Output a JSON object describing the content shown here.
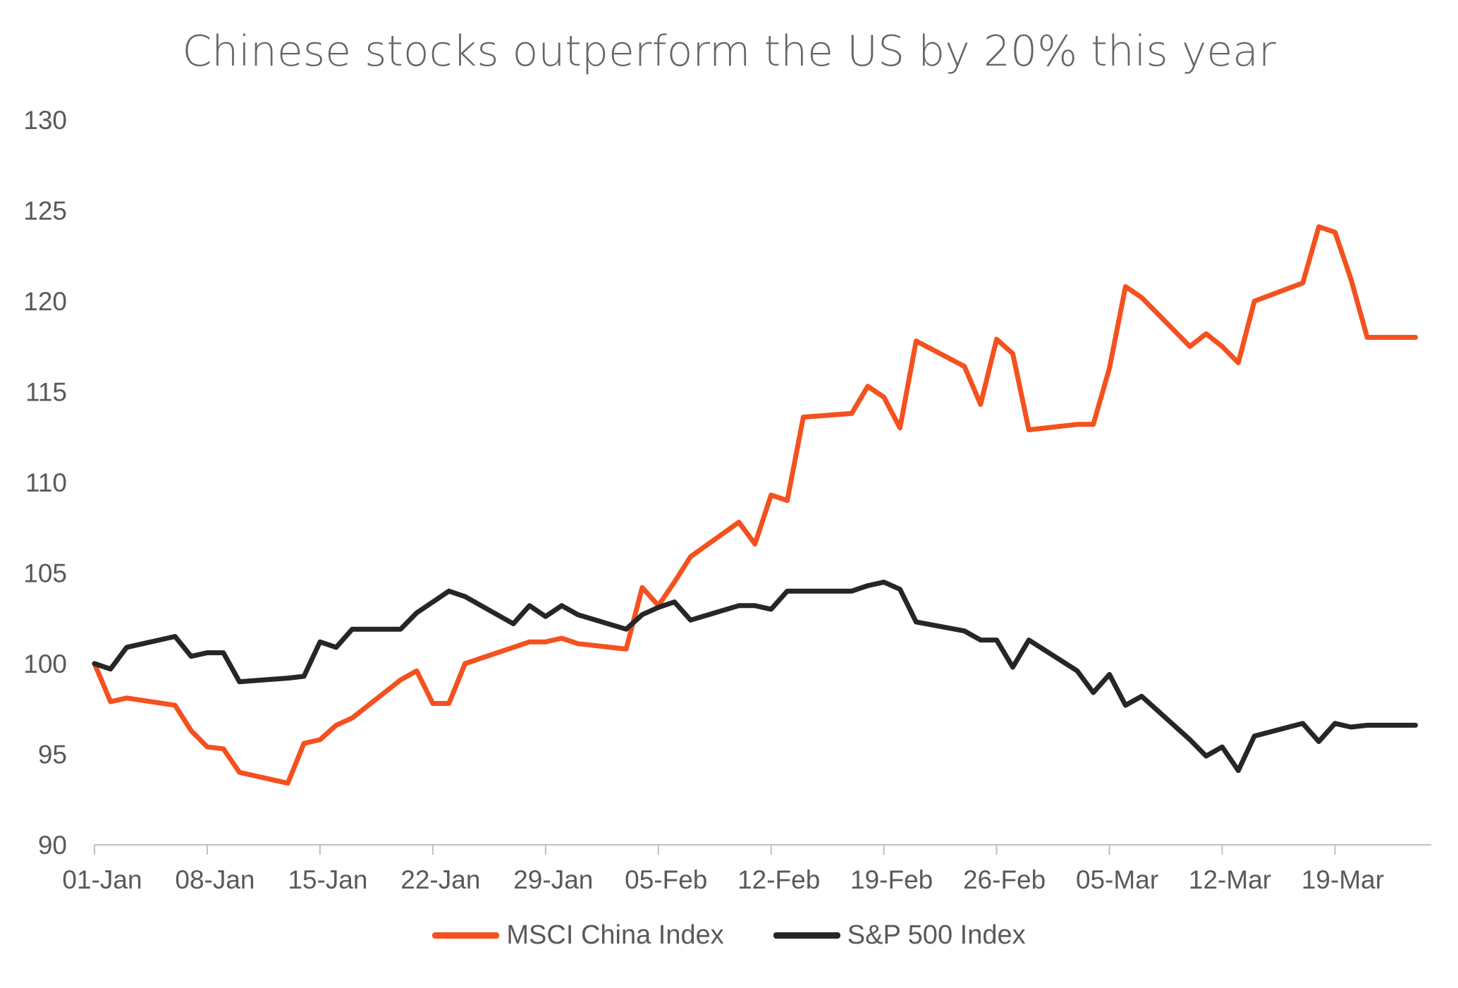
{
  "chart_data": {
    "type": "line",
    "title": "Chinese stocks outperform the US by 20% this year",
    "xlabel": "",
    "ylabel": "",
    "ylim": [
      90,
      130
    ],
    "yticks": [
      "90",
      "95",
      "100",
      "105",
      "110",
      "115",
      "120",
      "125",
      "130"
    ],
    "xticks": [
      {
        "label": "01-Jan",
        "day": 1
      },
      {
        "label": "08-Jan",
        "day": 8
      },
      {
        "label": "15-Jan",
        "day": 15
      },
      {
        "label": "22-Jan",
        "day": 22
      },
      {
        "label": "29-Jan",
        "day": 29
      },
      {
        "label": "05-Feb",
        "day": 36
      },
      {
        "label": "12-Feb",
        "day": 43
      },
      {
        "label": "19-Feb",
        "day": 50
      },
      {
        "label": "26-Feb",
        "day": 57
      },
      {
        "label": "05-Mar",
        "day": 64
      },
      {
        "label": "12-Mar",
        "day": 71
      },
      {
        "label": "19-Mar",
        "day": 78
      }
    ],
    "grid": false,
    "legend_position": "bottom",
    "series": [
      {
        "name": "MSCI China Index",
        "color": "#F4511E",
        "points": [
          [
            1,
            100
          ],
          [
            2,
            97.9
          ],
          [
            3,
            98.1
          ],
          [
            6,
            97.7
          ],
          [
            7,
            96.3
          ],
          [
            8,
            95.4
          ],
          [
            9,
            95.3
          ],
          [
            10,
            94
          ],
          [
            13,
            93.4
          ],
          [
            14,
            95.6
          ],
          [
            15,
            95.8
          ],
          [
            16,
            96.6
          ],
          [
            17,
            97
          ],
          [
            20,
            99.1
          ],
          [
            21,
            99.6
          ],
          [
            22,
            97.8
          ],
          [
            23,
            97.8
          ],
          [
            24,
            100
          ],
          [
            27,
            100.9
          ],
          [
            28,
            101.2
          ],
          [
            29,
            101.2
          ],
          [
            30,
            101.4
          ],
          [
            31,
            101.1
          ],
          [
            34,
            100.8
          ],
          [
            35,
            104.2
          ],
          [
            36,
            103.2
          ],
          [
            37,
            104.5
          ],
          [
            38,
            105.9
          ],
          [
            41,
            107.8
          ],
          [
            42,
            106.6
          ],
          [
            43,
            109.3
          ],
          [
            44,
            109
          ],
          [
            45,
            113.6
          ],
          [
            48,
            113.8
          ],
          [
            49,
            115.3
          ],
          [
            50,
            114.7
          ],
          [
            51,
            113
          ],
          [
            52,
            117.8
          ],
          [
            55,
            116.4
          ],
          [
            56,
            114.3
          ],
          [
            57,
            117.9
          ],
          [
            58,
            117.1
          ],
          [
            59,
            112.9
          ],
          [
            62,
            113.2
          ],
          [
            63,
            113.2
          ],
          [
            64,
            116.3
          ],
          [
            65,
            120.8
          ],
          [
            66,
            120.2
          ],
          [
            69,
            117.5
          ],
          [
            70,
            118.2
          ],
          [
            71,
            117.5
          ],
          [
            72,
            116.6
          ],
          [
            73,
            120
          ],
          [
            76,
            121
          ],
          [
            77,
            124.1
          ],
          [
            78,
            123.8
          ],
          [
            79,
            121.2
          ],
          [
            80,
            118
          ],
          [
            83,
            118
          ]
        ]
      },
      {
        "name": "S&P 500 Index",
        "color": "#262626",
        "points": [
          [
            1,
            100
          ],
          [
            2,
            99.7
          ],
          [
            3,
            100.9
          ],
          [
            6,
            101.5
          ],
          [
            7,
            100.4
          ],
          [
            8,
            100.6
          ],
          [
            9,
            100.6
          ],
          [
            10,
            99
          ],
          [
            13,
            99.2
          ],
          [
            14,
            99.3
          ],
          [
            15,
            101.2
          ],
          [
            16,
            100.9
          ],
          [
            17,
            101.9
          ],
          [
            20,
            101.9
          ],
          [
            21,
            102.8
          ],
          [
            22,
            103.4
          ],
          [
            23,
            104
          ],
          [
            24,
            103.7
          ],
          [
            27,
            102.2
          ],
          [
            28,
            103.2
          ],
          [
            29,
            102.6
          ],
          [
            30,
            103.2
          ],
          [
            31,
            102.7
          ],
          [
            34,
            101.9
          ],
          [
            35,
            102.7
          ],
          [
            36,
            103.1
          ],
          [
            37,
            103.4
          ],
          [
            38,
            102.4
          ],
          [
            41,
            103.2
          ],
          [
            42,
            103.2
          ],
          [
            43,
            103
          ],
          [
            44,
            104
          ],
          [
            45,
            104
          ],
          [
            48,
            104
          ],
          [
            49,
            104.3
          ],
          [
            50,
            104.5
          ],
          [
            51,
            104.1
          ],
          [
            52,
            102.3
          ],
          [
            55,
            101.8
          ],
          [
            56,
            101.3
          ],
          [
            57,
            101.3
          ],
          [
            58,
            99.8
          ],
          [
            59,
            101.3
          ],
          [
            62,
            99.6
          ],
          [
            63,
            98.4
          ],
          [
            64,
            99.4
          ],
          [
            65,
            97.7
          ],
          [
            66,
            98.2
          ],
          [
            69,
            95.8
          ],
          [
            70,
            94.9
          ],
          [
            71,
            95.4
          ],
          [
            72,
            94.1
          ],
          [
            73,
            96
          ],
          [
            76,
            96.7
          ],
          [
            77,
            95.7
          ],
          [
            78,
            96.7
          ],
          [
            79,
            96.5
          ],
          [
            80,
            96.6
          ],
          [
            83,
            96.6
          ]
        ]
      }
    ]
  }
}
